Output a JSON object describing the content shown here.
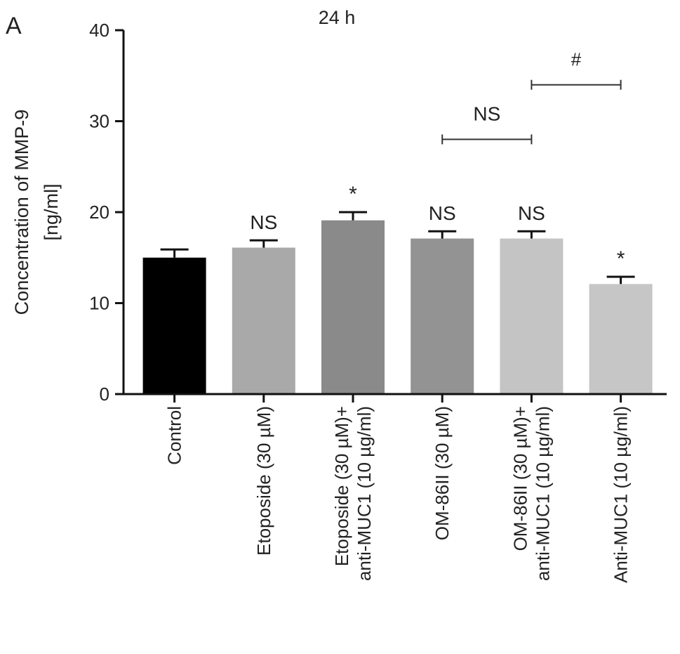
{
  "panel_label": "A",
  "chart_data": {
    "type": "bar",
    "title": "24 h",
    "ylabel_lines": [
      "Concentration of MMP-9",
      "[ng/ml]"
    ],
    "xlabel": "",
    "ylim": [
      0,
      40
    ],
    "yticks": [
      0,
      10,
      20,
      30,
      40
    ],
    "categories": [
      [
        "Control"
      ],
      [
        "Etoposide (30 µM)"
      ],
      [
        "Etoposide (30 µM)+",
        "anti-MUC1 (10 µg/ml)"
      ],
      [
        "OM-86II (30 µM)"
      ],
      [
        "OM-86II (30 µM)+",
        "anti-MUC1 (10 µg/ml)"
      ],
      [
        "Anti-MUC1 (10 µg/ml)"
      ]
    ],
    "values": [
      15.0,
      16.1,
      19.1,
      17.1,
      17.1,
      12.1
    ],
    "errors": [
      0.9,
      0.8,
      0.9,
      0.8,
      0.8,
      0.8
    ],
    "bar_colors": [
      "#000000",
      "#a9a9a9",
      "#8a8a8a",
      "#939393",
      "#c4c4c4",
      "#c6c6c6"
    ],
    "bar_annotations": [
      "",
      "NS",
      "*",
      "NS",
      "NS",
      "*"
    ],
    "comparisons": [
      {
        "from": 3,
        "to": 4,
        "y": 28,
        "label": "NS"
      },
      {
        "from": 4,
        "to": 5,
        "y": 34,
        "label": "#"
      }
    ]
  }
}
